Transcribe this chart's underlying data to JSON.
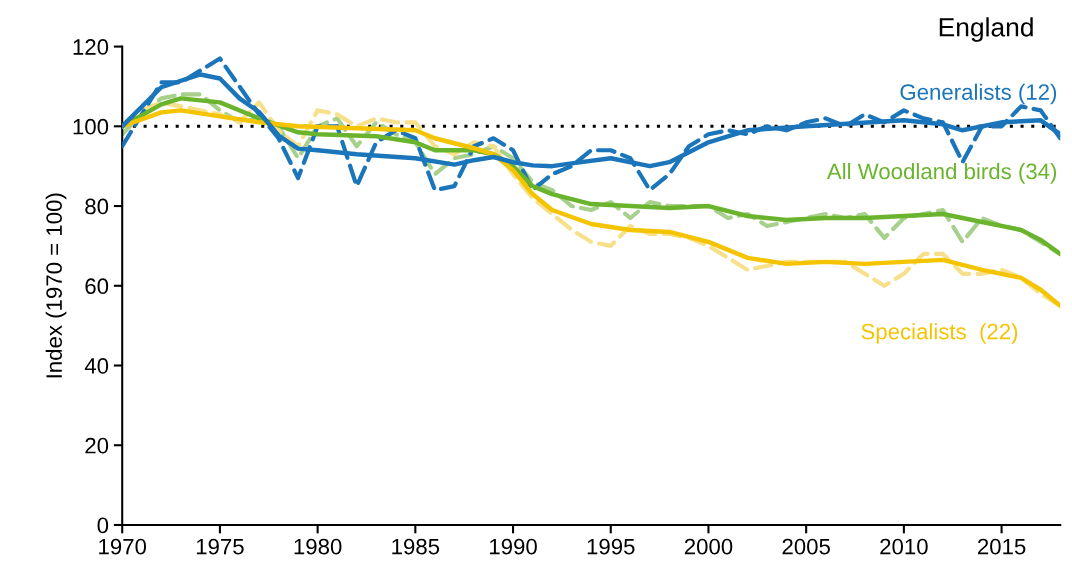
{
  "chart_data": {
    "type": "line",
    "title": "England",
    "ylabel": "Index (1970 = 100)",
    "xlim": [
      1970,
      2018
    ],
    "xticks": [
      1970,
      1975,
      1980,
      1985,
      1990,
      1995,
      2000,
      2005,
      2010,
      2015
    ],
    "ylim": [
      0,
      120
    ],
    "yticks": [
      0,
      20,
      40,
      60,
      80,
      100,
      120
    ],
    "grid": false,
    "legend": false,
    "marker": "none",
    "ref_lines": [
      {
        "axis": "y",
        "value": 100,
        "color": "#000000",
        "line_style": "dotted"
      }
    ],
    "series": [
      {
        "color": "#a8d08d",
        "line_style": "dashed",
        "x": [
          1970,
          1971,
          1972,
          1973,
          1974,
          1975,
          1976,
          1977,
          1978,
          1979,
          1980,
          1981,
          1982,
          1983,
          1984,
          1985,
          1986,
          1987,
          1988,
          1989,
          1990,
          1991,
          1992,
          1993,
          1994,
          1995,
          1996,
          1997,
          1998,
          1999,
          2000,
          2001,
          2002,
          2003,
          2004,
          2005,
          2006,
          2007,
          2008,
          2009,
          2010,
          2011,
          2012,
          2013,
          2014,
          2015,
          2016,
          2017,
          2018
        ],
        "values": [
          98,
          103,
          107,
          108,
          108,
          104,
          101,
          102,
          100,
          92,
          100,
          102,
          95,
          101,
          98,
          96,
          88,
          92,
          93,
          95,
          92,
          86,
          84,
          80,
          79,
          81,
          77,
          81,
          80,
          80,
          80,
          77,
          78,
          75,
          76,
          77,
          78,
          77,
          78,
          72,
          77,
          78,
          79,
          71,
          77,
          75,
          74,
          71,
          68
        ]
      },
      {
        "color": "#f8e08a",
        "line_style": "dashed",
        "x": [
          1970,
          1971,
          1972,
          1973,
          1974,
          1975,
          1976,
          1977,
          1978,
          1979,
          1980,
          1981,
          1982,
          1983,
          1984,
          1985,
          1986,
          1987,
          1988,
          1989,
          1990,
          1991,
          1992,
          1993,
          1994,
          1995,
          1996,
          1997,
          1998,
          1999,
          2000,
          2001,
          2002,
          2003,
          2004,
          2005,
          2006,
          2007,
          2008,
          2009,
          2010,
          2011,
          2012,
          2013,
          2014,
          2015,
          2016,
          2017,
          2018
        ],
        "values": [
          100,
          104,
          106,
          105,
          104,
          103,
          101,
          106,
          99,
          95,
          104,
          103,
          100,
          102,
          101,
          101,
          95,
          93,
          96,
          95,
          88,
          82,
          78,
          74,
          71,
          70,
          75,
          73,
          73,
          72,
          70,
          67,
          64,
          65,
          66,
          66,
          66,
          66,
          63,
          60,
          63,
          68,
          68,
          63,
          63,
          64,
          62,
          58,
          55
        ]
      },
      {
        "color": "#1a75bb",
        "line_style": "dashed",
        "x": [
          1970,
          1971,
          1972,
          1973,
          1974,
          1975,
          1976,
          1977,
          1978,
          1979,
          1980,
          1981,
          1982,
          1983,
          1984,
          1985,
          1986,
          1987,
          1988,
          1989,
          1990,
          1991,
          1992,
          1993,
          1994,
          1995,
          1996,
          1997,
          1998,
          1999,
          2000,
          2001,
          2002,
          2003,
          2004,
          2005,
          2006,
          2007,
          2008,
          2009,
          2010,
          2011,
          2012,
          2013,
          2014,
          2015,
          2016,
          2017,
          2018
        ],
        "values": [
          95,
          103,
          111,
          111,
          114,
          117,
          110,
          103,
          97,
          87,
          100,
          100,
          85,
          96,
          99,
          97,
          84,
          85,
          95,
          97,
          94,
          84,
          88,
          90,
          94,
          94,
          92,
          84,
          88,
          95,
          98,
          99,
          98,
          100,
          99,
          101,
          102,
          100,
          103,
          101,
          104,
          102,
          101,
          91,
          100,
          100,
          105,
          104,
          97
        ]
      },
      {
        "name": "All Woodland birds (34)",
        "color": "#6ab42d",
        "line_style": "solid",
        "x": [
          1970,
          1972,
          1973,
          1975,
          1977,
          1979,
          1980,
          1983,
          1985,
          1986,
          1988,
          1989,
          1990,
          1991,
          1992,
          1994,
          1996,
          1998,
          2000,
          2002,
          2004,
          2006,
          2008,
          2010,
          2012,
          2014,
          2016,
          2017,
          2018
        ],
        "values": [
          100,
          105.5,
          107,
          106,
          102,
          98.5,
          98,
          97.5,
          96,
          94,
          94,
          93,
          90,
          85,
          83,
          80.5,
          80,
          79.5,
          80,
          77.5,
          76.5,
          77,
          77,
          77.5,
          78,
          76,
          74,
          71.5,
          68
        ]
      },
      {
        "name": "Specialists  (22)",
        "color": "#f5c400",
        "line_style": "solid",
        "x": [
          1970,
          1972,
          1973,
          1975,
          1977,
          1979,
          1985,
          1986,
          1988,
          1989,
          1990,
          1991,
          1992,
          1994,
          1996,
          1998,
          2000,
          2002,
          2004,
          2006,
          2008,
          2010,
          2012,
          2014,
          2016,
          2017,
          2018
        ],
        "values": [
          100,
          103.5,
          104,
          102.5,
          101,
          100,
          99,
          97,
          94.5,
          93,
          89,
          83,
          79,
          75.5,
          74,
          73.5,
          71,
          67,
          65.5,
          66,
          65.5,
          66,
          66.5,
          64,
          62,
          59,
          55
        ]
      },
      {
        "name": "Generalists (12)",
        "color": "#1a75bb",
        "line_style": "solid",
        "x": [
          1970,
          1972,
          1974,
          1975,
          1976,
          1977,
          1978,
          1979,
          1980,
          1982,
          1985,
          1987,
          1988,
          1989,
          1990,
          1991,
          1992,
          1993,
          1995,
          1997,
          1998,
          2000,
          2002,
          2005,
          2010,
          2012,
          2013,
          2015,
          2017,
          2018
        ],
        "values": [
          100,
          109.8,
          113,
          112,
          107,
          103.6,
          97.7,
          94.4,
          94,
          93,
          92,
          90.4,
          91.5,
          92.3,
          91,
          90.2,
          90,
          90.7,
          92,
          90,
          91,
          96,
          99,
          100,
          101.5,
          100.5,
          99,
          101,
          101.5,
          98
        ]
      }
    ]
  }
}
